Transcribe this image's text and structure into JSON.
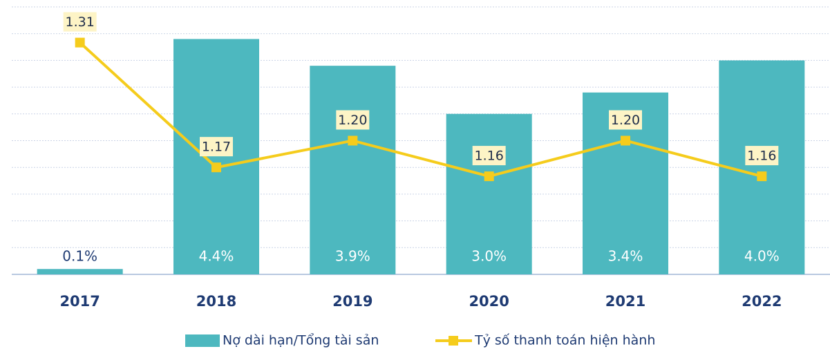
{
  "chart_data": {
    "type": "bar-line",
    "categories": [
      "2017",
      "2018",
      "2019",
      "2020",
      "2021",
      "2022"
    ],
    "series": [
      {
        "name": "Nợ dài hạn/Tổng tài sản",
        "type": "bar",
        "color": "#4db8bf",
        "values": [
          0.1,
          4.4,
          3.9,
          3.0,
          3.4,
          4.0
        ],
        "value_labels": [
          "0.1%",
          "4.4%",
          "3.9%",
          "3.0%",
          "3.4%",
          "4.0%"
        ]
      },
      {
        "name": "Tỷ số thanh toán hiện hành",
        "type": "line",
        "axis": "y2",
        "color": "#f5cc1c",
        "values": [
          1.31,
          1.17,
          1.2,
          1.16,
          1.2,
          1.16
        ],
        "value_labels": [
          "1.31",
          "1.17",
          "1.20",
          "1.16",
          "1.20",
          "1.16"
        ]
      }
    ],
    "ylim": [
      0,
      5
    ],
    "yticks": [
      0,
      0.5,
      1,
      1.5,
      2,
      2.5,
      3,
      3.5,
      4,
      4.5,
      5
    ],
    "y2lim": [
      1.05,
      1.35
    ],
    "grid": true,
    "legend": "bottom"
  }
}
